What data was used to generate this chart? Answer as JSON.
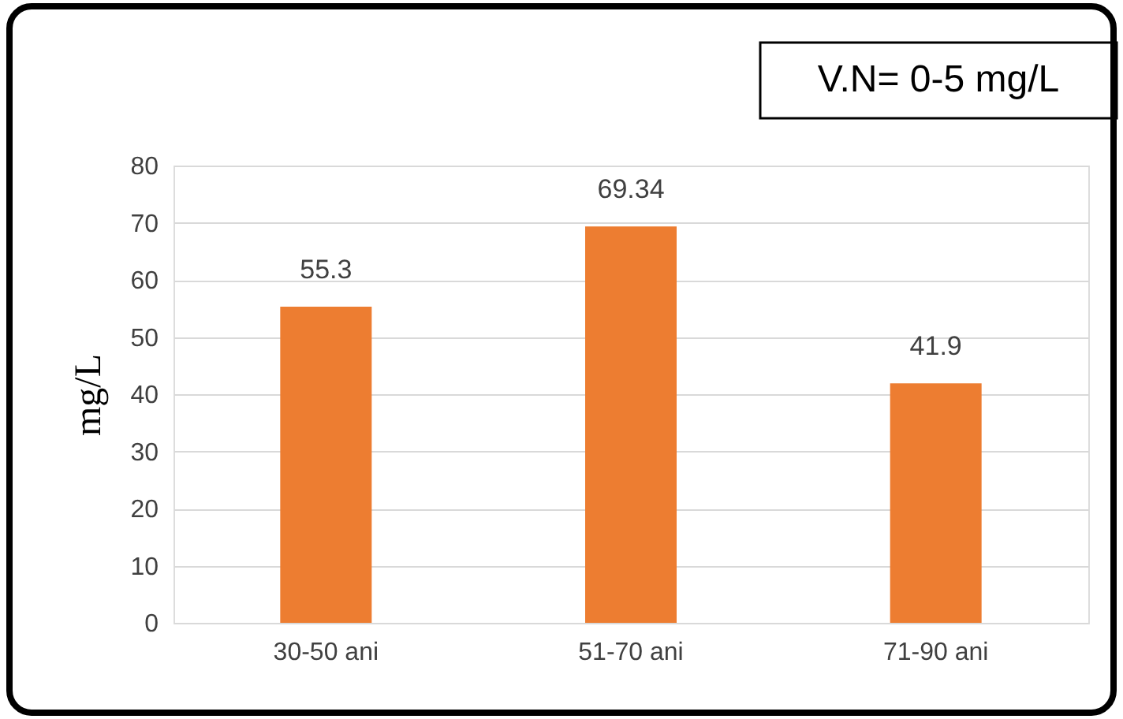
{
  "chart_data": {
    "type": "bar",
    "categories": [
      "30-50 ani",
      "51-70 ani",
      "71-90 ani"
    ],
    "values": [
      55.3,
      69.34,
      41.9
    ],
    "color": "#ed7d31",
    "ylabel": "mg/L",
    "ylim": [
      0,
      80
    ],
    "yticks": [
      0,
      10,
      20,
      30,
      40,
      50,
      60,
      70,
      80
    ],
    "grid": "y",
    "data_labels": true,
    "annotations": [
      "V.N= 0-5 mg/L"
    ]
  }
}
